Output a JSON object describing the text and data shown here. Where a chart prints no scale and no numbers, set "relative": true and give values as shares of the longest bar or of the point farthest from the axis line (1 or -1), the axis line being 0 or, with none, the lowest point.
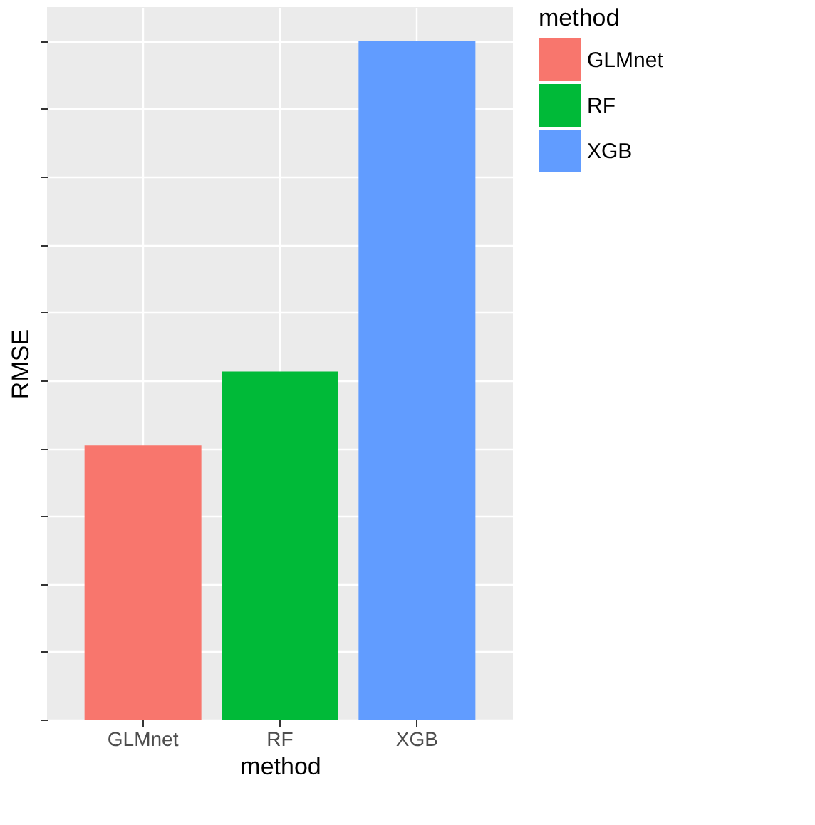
{
  "chart_data": {
    "type": "bar",
    "relative": true,
    "xlabel": "method",
    "ylabel": "RMSE",
    "legend_title": "method",
    "legend": "right",
    "grid": true,
    "categories": [
      "GLMnet",
      "RF",
      "XGB"
    ],
    "series": [
      {
        "name": "GLMnet",
        "color": "#f8766d",
        "values": [
          0.404,
          null,
          null
        ]
      },
      {
        "name": "RF",
        "color": "#00ba38",
        "values": [
          null,
          0.513,
          null
        ]
      },
      {
        "name": "XGB",
        "color": "#619cff",
        "values": [
          null,
          null,
          1
        ]
      }
    ]
  }
}
